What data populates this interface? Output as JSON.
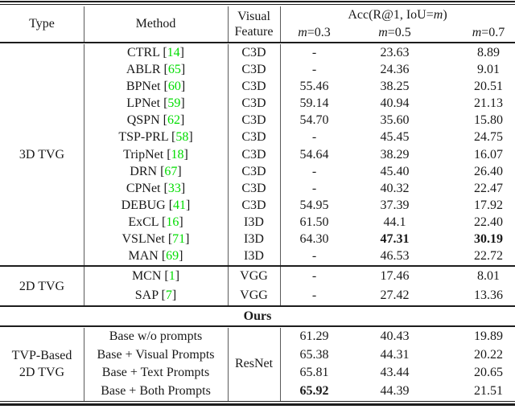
{
  "colors": {
    "citation_green": "#00dd00"
  },
  "table": {
    "header": {
      "type": "Type",
      "method": "Method",
      "visual_line1": "Visual",
      "visual_line2": "Feature",
      "acc_prefix": "Acc(R@1, IoU=",
      "acc_m": "m",
      "acc_suffix": ")",
      "m_char": "m",
      "m03_rest": "=0.3",
      "m05_rest": "=0.5",
      "m07_rest": "=0.7"
    },
    "cite_open": "[",
    "cite_close": "]",
    "sections": {
      "tvg3d": {
        "type_label": "3D TVG",
        "rows": [
          {
            "method": "CTRL",
            "cite": "14",
            "feature": "C3D",
            "m03": "-",
            "m05": "23.63",
            "m07": "8.89"
          },
          {
            "method": "ABLR",
            "cite": "65",
            "feature": "C3D",
            "m03": "-",
            "m05": "24.36",
            "m07": "9.01"
          },
          {
            "method": "BPNet",
            "cite": "60",
            "feature": "C3D",
            "m03": "55.46",
            "m05": "38.25",
            "m07": "20.51"
          },
          {
            "method": "LPNet",
            "cite": "59",
            "feature": "C3D",
            "m03": "59.14",
            "m05": "40.94",
            "m07": "21.13"
          },
          {
            "method": "QSPN",
            "cite": "62",
            "feature": "C3D",
            "m03": "54.70",
            "m05": "35.60",
            "m07": "15.80"
          },
          {
            "method": "TSP-PRL",
            "cite": "58",
            "feature": "C3D",
            "m03": "-",
            "m05": "45.45",
            "m07": "24.75"
          },
          {
            "method": "TripNet",
            "cite": "18",
            "feature": "C3D",
            "m03": "54.64",
            "m05": "38.29",
            "m07": "16.07"
          },
          {
            "method": "DRN",
            "cite": "67",
            "feature": "C3D",
            "m03": "-",
            "m05": "45.40",
            "m07": "26.40"
          },
          {
            "method": "CPNet",
            "cite": "33",
            "feature": "C3D",
            "m03": "-",
            "m05": "40.32",
            "m07": "22.47"
          },
          {
            "method": "DEBUG",
            "cite": "41",
            "feature": "C3D",
            "m03": "54.95",
            "m05": "37.39",
            "m07": "17.92"
          },
          {
            "method": "ExCL",
            "cite": "16",
            "feature": "I3D",
            "m03": "61.50",
            "m05": "44.1",
            "m07": "22.40"
          },
          {
            "method": "VSLNet",
            "cite": "71",
            "feature": "I3D",
            "m03": "64.30",
            "m05": "47.31",
            "m07": "30.19"
          },
          {
            "method": "MAN",
            "cite": "69",
            "feature": "I3D",
            "m03": "-",
            "m05": "46.53",
            "m07": "22.72"
          }
        ]
      },
      "tvg2d": {
        "type_label": "2D TVG",
        "rows": [
          {
            "method": "MCN",
            "cite": "1",
            "feature": "VGG",
            "m03": "-",
            "m05": "17.46",
            "m07": "8.01"
          },
          {
            "method": "SAP",
            "cite": "7",
            "feature": "VGG",
            "m03": "-",
            "m05": "27.42",
            "m07": "13.36"
          }
        ]
      },
      "ours_label": "Ours",
      "tvp": {
        "type_label_line1": "TVP-Based",
        "type_label_line2": "2D TVG",
        "feature": "ResNet",
        "rows": [
          {
            "method": "Base w/o prompts",
            "m03": "61.29",
            "m05": "40.43",
            "m07": "19.89"
          },
          {
            "method": "Base + Visual Prompts",
            "m03": "65.38",
            "m05": "44.31",
            "m07": "20.22"
          },
          {
            "method": "Base + Text Prompts",
            "m03": "65.81",
            "m05": "43.44",
            "m07": "20.65"
          },
          {
            "method": "Base + Both Prompts",
            "m03": "65.92",
            "m05": "44.39",
            "m07": "21.51"
          }
        ]
      }
    }
  }
}
